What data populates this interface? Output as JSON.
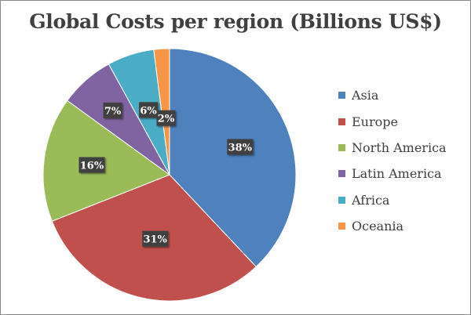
{
  "chart_data": {
    "type": "pie",
    "title": "Global Costs per region (Billions US$)",
    "categories": [
      "Asia",
      "Europe",
      "North America",
      "Latin America",
      "Africa",
      "Oceania"
    ],
    "values": [
      38,
      31,
      16,
      7,
      6,
      2
    ],
    "labels": [
      "38%",
      "31%",
      "16%",
      "7%",
      "6%",
      "2%"
    ],
    "colors": [
      "#4f81bd",
      "#c0504d",
      "#9bbb59",
      "#8064a2",
      "#4bacc6",
      "#f79646"
    ],
    "legend_position": "right",
    "start_angle": "12 o'clock",
    "direction": "clockwise"
  }
}
